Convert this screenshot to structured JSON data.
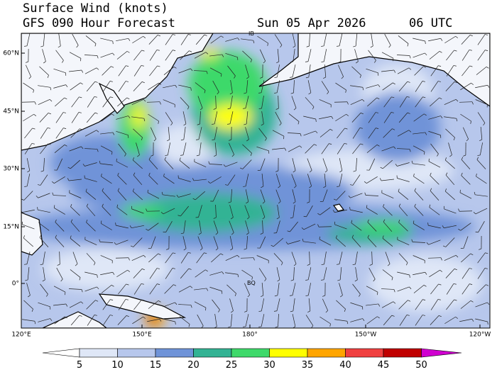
{
  "header": {
    "title": "Surface Wind (knots)",
    "subtitle": "GFS 090 Hour Forecast",
    "date": "Sun 05 Apr 2026",
    "time": "06 UTC"
  },
  "map": {
    "lat_labels": [
      "60°N",
      "45°N",
      "30°N",
      "15°N",
      "0°"
    ],
    "lon_labels": [
      "120°E",
      "150°E",
      "180°",
      "150°W",
      "120°W"
    ],
    "place_labels": [
      "IB",
      "BQ"
    ]
  },
  "colorbar": {
    "ticks": [
      5,
      10,
      15,
      20,
      25,
      30,
      35,
      40,
      45,
      50
    ],
    "colors": [
      "#ffffff",
      "#dfe7f7",
      "#b7c7ec",
      "#6f93d8",
      "#33b394",
      "#3ed96a",
      "#ffff00",
      "#ffa500",
      "#f04040",
      "#c00000",
      "#d000d0"
    ]
  }
}
